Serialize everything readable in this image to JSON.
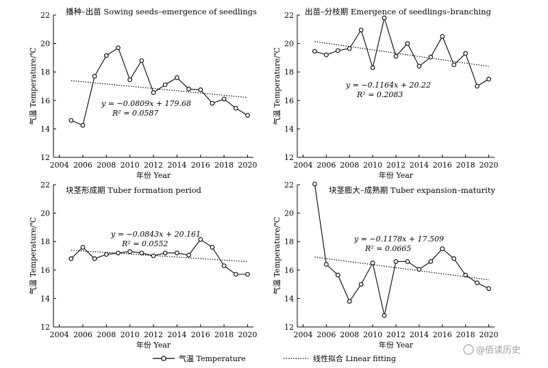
{
  "chart_data": [
    {
      "type": "line",
      "title": "播种–出苗 Sowing seeds–emergence of seedlings",
      "xlabel": "年份 Year",
      "ylabel": "气温 Temperature/℃",
      "x": [
        2005,
        2006,
        2007,
        2008,
        2009,
        2010,
        2011,
        2012,
        2013,
        2014,
        2015,
        2016,
        2017,
        2018,
        2019,
        2020
      ],
      "series": [
        {
          "name": "气温 Temperature",
          "values": [
            14.6,
            14.25,
            17.7,
            19.15,
            19.7,
            17.45,
            18.8,
            16.55,
            17.1,
            17.6,
            16.8,
            16.75,
            15.8,
            16.1,
            15.45,
            14.95
          ]
        }
      ],
      "fit": {
        "slope": -0.0809,
        "intercept": 179.68
      },
      "equation_line1": "y = −0.0809x + 179.68",
      "equation_line2": "R² = 0.0587",
      "xticks": [
        2004,
        2006,
        2008,
        2010,
        2012,
        2014,
        2016,
        2018,
        2020
      ],
      "yticks": [
        12,
        14,
        16,
        18,
        20,
        22
      ],
      "xlim": [
        2003.5,
        2020.5
      ],
      "ylim": [
        12,
        22
      ],
      "grid": false
    },
    {
      "type": "line",
      "title": "出苗–分枝期 Emergence of seedlings–branching",
      "xlabel": "年份 Year",
      "ylabel": "气温 Temperature/℃",
      "x": [
        2005,
        2006,
        2007,
        2008,
        2009,
        2010,
        2011,
        2012,
        2013,
        2014,
        2015,
        2016,
        2017,
        2018,
        2019,
        2020
      ],
      "series": [
        {
          "name": "气温 Temperature",
          "values": [
            19.45,
            19.2,
            19.5,
            19.65,
            20.95,
            18.3,
            21.8,
            19.1,
            20.0,
            18.4,
            19.05,
            20.5,
            18.5,
            19.3,
            17.0,
            17.5
          ]
        }
      ],
      "fit": {
        "slope": -0.1164,
        "intercept": 20.22
      },
      "equation_line1": "y = −0.1164x + 20.22",
      "equation_line2": "R² = 0.2083",
      "xticks": [
        2004,
        2006,
        2008,
        2010,
        2012,
        2014,
        2016,
        2018,
        2020
      ],
      "yticks": [
        12,
        14,
        16,
        18,
        20,
        22
      ],
      "xlim": [
        2003.5,
        2020.5
      ],
      "ylim": [
        12,
        22
      ],
      "grid": false
    },
    {
      "type": "line",
      "title": "块茎形成期 Tuber formation period",
      "xlabel": "年份 Year",
      "ylabel": "气温 Temperature/℃",
      "x": [
        2005,
        2006,
        2007,
        2008,
        2009,
        2010,
        2011,
        2012,
        2013,
        2014,
        2015,
        2016,
        2017,
        2018,
        2019,
        2020
      ],
      "series": [
        {
          "name": "气温 Temperature",
          "values": [
            16.8,
            17.6,
            16.8,
            17.1,
            17.2,
            17.3,
            17.2,
            17.0,
            17.2,
            17.2,
            17.05,
            18.15,
            17.6,
            16.3,
            15.7,
            15.7
          ]
        }
      ],
      "fit": {
        "slope": -0.0843,
        "intercept": 20.161
      },
      "equation_line1": "y = −0.0843x + 20.161",
      "equation_line2": "R² = 0.0552",
      "xticks": [
        2004,
        2006,
        2008,
        2010,
        2012,
        2014,
        2016,
        2018,
        2020
      ],
      "yticks": [
        12,
        14,
        16,
        18,
        20,
        22
      ],
      "xlim": [
        2003.5,
        2020.5
      ],
      "ylim": [
        12,
        22
      ],
      "grid": false
    },
    {
      "type": "line",
      "title": "块茎膨大–成熟期 Tuber expansion–maturity",
      "xlabel": "年份 Year",
      "ylabel": "气温 Temperature/℃",
      "x": [
        2005,
        2006,
        2007,
        2008,
        2009,
        2010,
        2011,
        2012,
        2013,
        2014,
        2015,
        2016,
        2017,
        2018,
        2019,
        2020
      ],
      "series": [
        {
          "name": "气温 Temperature",
          "values": [
            22.05,
            16.4,
            15.65,
            13.8,
            15.0,
            16.5,
            12.8,
            16.6,
            16.6,
            16.05,
            16.6,
            17.5,
            16.8,
            15.65,
            15.1,
            14.7
          ]
        }
      ],
      "fit": {
        "slope": -0.1178,
        "intercept": 17.509
      },
      "equation_line1": "y = −0.1178x + 17.509",
      "equation_line2": "R² = 0.0665",
      "xticks": [
        2004,
        2006,
        2008,
        2010,
        2012,
        2014,
        2016,
        2018,
        2020
      ],
      "yticks": [
        12,
        14,
        16,
        18,
        20,
        22
      ],
      "xlim": [
        2003.5,
        2020.5
      ],
      "ylim": [
        12,
        22
      ],
      "grid": false
    }
  ],
  "legend": {
    "placement": "bottom-center",
    "temperature_label": "气温 Temperature",
    "fit_label": "线性拟合 Linear fitting"
  },
  "watermark": {
    "text": "@佰读历史"
  }
}
